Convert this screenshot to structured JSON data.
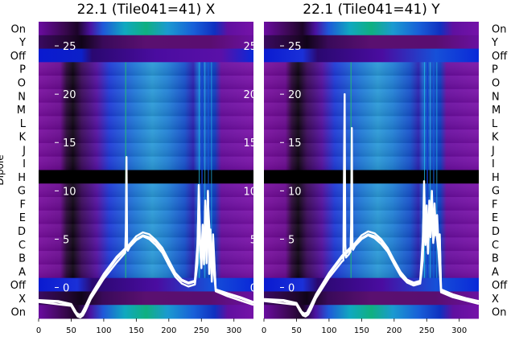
{
  "chart_data": [
    {
      "type": "heatmap",
      "title": "22.1 (Tile041=41) X",
      "ylabel": "Dipole",
      "xlim": [
        0,
        330
      ],
      "x_ticks": [
        0,
        50,
        100,
        150,
        200,
        250,
        300
      ],
      "y_row_labels": [
        "On",
        "Y",
        "Off",
        "P",
        "O",
        "N",
        "M",
        "L",
        "K",
        "J",
        "I",
        "H",
        "G",
        "F",
        "E",
        "D",
        "C",
        "B",
        "A",
        "Off",
        "X",
        "On"
      ],
      "overlay_ticks": [
        25,
        20,
        15,
        10,
        5,
        0
      ],
      "overlay_ylim": [
        -3.2,
        27.5
      ],
      "flagged_row": "H",
      "series": [
        {
          "name": "",
          "x": [
            0,
            30,
            50,
            58,
            62,
            66,
            70,
            80,
            100,
            120,
            140,
            150,
            160,
            170,
            180,
            190,
            200,
            210,
            220,
            230,
            240,
            244,
            246,
            248,
            250,
            252,
            254,
            256,
            258,
            260,
            262,
            264,
            266,
            268,
            272,
            290,
            310,
            330
          ],
          "y": [
            -1.4,
            -1.5,
            -1.8,
            -2.7,
            -2.9,
            -2.8,
            -2.3,
            -0.9,
            1.2,
            3.0,
            4.3,
            5.0,
            5.4,
            5.2,
            4.7,
            3.9,
            2.6,
            1.4,
            0.7,
            0.4,
            0.6,
            3.8,
            10.6,
            5.0,
            3.0,
            6.5,
            2.4,
            8.5,
            3.5,
            9.8,
            2.0,
            6.0,
            0.9,
            5.5,
            -0.3,
            -0.7,
            -1.1,
            -1.6
          ]
        },
        {
          "name": "",
          "x": [
            0,
            30,
            50,
            58,
            62,
            66,
            70,
            80,
            100,
            120,
            140,
            150,
            160,
            170,
            180,
            190,
            200,
            210,
            220,
            230,
            240,
            244,
            246,
            248,
            250,
            252,
            254,
            256,
            258,
            260,
            262,
            264,
            266,
            268,
            272,
            290,
            310,
            330
          ],
          "y": [
            -1.3,
            -1.4,
            -1.7,
            -2.6,
            -2.8,
            -2.7,
            -2.2,
            -0.8,
            1.4,
            3.2,
            4.5,
            5.3,
            5.7,
            5.5,
            4.9,
            4.1,
            2.8,
            1.5,
            0.8,
            0.5,
            0.7,
            4.5,
            9.2,
            3.9,
            2.2,
            5.8,
            3.0,
            9.0,
            2.7,
            10.0,
            1.4,
            5.5,
            0.6,
            4.8,
            -0.2,
            -0.6,
            -1.0,
            -1.5
          ]
        },
        {
          "name": "",
          "x": [
            0,
            50,
            55,
            60,
            64,
            68,
            72,
            80,
            100,
            120,
            133,
            134,
            135,
            136,
            137,
            140,
            150,
            160,
            170,
            180,
            190,
            200,
            210,
            220,
            230,
            240,
            244,
            246,
            248,
            250,
            252,
            254,
            256,
            258,
            260,
            264,
            268,
            272,
            290,
            330
          ],
          "y": [
            -1.5,
            -1.9,
            -2.5,
            -3.0,
            -3.1,
            -2.9,
            -2.4,
            -1.2,
            0.9,
            2.6,
            3.6,
            6.0,
            13.5,
            4.0,
            3.8,
            4.2,
            4.9,
            5.3,
            5.0,
            4.4,
            3.6,
            2.3,
            1.1,
            0.4,
            0.1,
            0.3,
            2.5,
            7.0,
            4.2,
            2.0,
            6.3,
            2.8,
            7.5,
            2.5,
            9.0,
            4.0,
            2.5,
            -0.4,
            -0.9,
            -1.8
          ]
        }
      ]
    },
    {
      "type": "heatmap",
      "title": "22.1 (Tile041=41) Y",
      "ylabel": "",
      "xlim": [
        0,
        330
      ],
      "x_ticks": [
        0,
        50,
        100,
        150,
        200,
        250,
        300
      ],
      "y_row_labels": [
        "On",
        "Y",
        "Off",
        "P",
        "O",
        "N",
        "M",
        "L",
        "K",
        "J",
        "I",
        "H",
        "G",
        "F",
        "E",
        "D",
        "C",
        "B",
        "A",
        "Off",
        "X",
        "On"
      ],
      "overlay_ticks": [
        25,
        20,
        15,
        10,
        5,
        0
      ],
      "overlay_ylim": [
        -3.2,
        27.5
      ],
      "flagged_row": "H",
      "series": [
        {
          "name": "",
          "x": [
            0,
            30,
            50,
            58,
            62,
            66,
            70,
            80,
            100,
            120,
            140,
            150,
            160,
            170,
            180,
            190,
            200,
            210,
            220,
            230,
            240,
            244,
            246,
            248,
            250,
            252,
            254,
            256,
            258,
            260,
            262,
            264,
            266,
            268,
            270,
            272,
            290,
            310,
            330
          ],
          "y": [
            -1.3,
            -1.4,
            -1.7,
            -2.6,
            -2.8,
            -2.7,
            -2.2,
            -0.8,
            1.3,
            3.1,
            4.4,
            5.1,
            5.5,
            5.3,
            4.8,
            3.9,
            2.6,
            1.4,
            0.7,
            0.4,
            0.6,
            4.0,
            11.0,
            5.0,
            8.5,
            4.0,
            9.0,
            6.5,
            10.0,
            5.2,
            8.7,
            6.0,
            7.5,
            4.8,
            5.5,
            -0.4,
            -0.8,
            -1.2,
            -1.5
          ]
        },
        {
          "name": "",
          "x": [
            0,
            30,
            50,
            58,
            62,
            66,
            70,
            80,
            100,
            120,
            140,
            150,
            160,
            170,
            180,
            190,
            200,
            210,
            220,
            230,
            240,
            244,
            246,
            248,
            250,
            252,
            254,
            256,
            258,
            260,
            262,
            264,
            266,
            268,
            270,
            272,
            290,
            310,
            330
          ],
          "y": [
            -1.2,
            -1.3,
            -1.6,
            -2.5,
            -2.7,
            -2.6,
            -2.1,
            -0.7,
            1.5,
            3.3,
            4.6,
            5.4,
            5.8,
            5.6,
            5.0,
            4.1,
            2.8,
            1.6,
            0.8,
            0.5,
            0.7,
            5.0,
            9.5,
            4.5,
            7.8,
            3.6,
            8.2,
            6.0,
            9.4,
            4.6,
            8.0,
            5.4,
            7.0,
            4.2,
            5.0,
            -0.2,
            -0.7,
            -1.1,
            -1.4
          ]
        },
        {
          "name": "",
          "x": [
            0,
            50,
            55,
            60,
            64,
            68,
            72,
            80,
            100,
            120,
            122,
            123,
            124,
            125,
            126,
            130,
            133,
            134,
            135,
            136,
            137,
            140,
            150,
            160,
            170,
            180,
            190,
            200,
            210,
            220,
            230,
            240,
            244,
            246,
            248,
            250,
            252,
            254,
            256,
            258,
            260,
            264,
            268,
            272,
            290,
            330
          ],
          "y": [
            -1.4,
            -1.8,
            -2.4,
            -2.9,
            -3.0,
            -2.8,
            -2.3,
            -1.1,
            1.0,
            2.7,
            2.8,
            12.0,
            20.0,
            4.5,
            3.1,
            3.4,
            3.7,
            6.5,
            16.5,
            4.2,
            3.9,
            4.3,
            5.0,
            5.4,
            5.1,
            4.5,
            3.7,
            2.4,
            1.2,
            0.5,
            0.2,
            0.4,
            2.8,
            7.2,
            4.4,
            6.8,
            3.5,
            7.6,
            5.2,
            8.4,
            4.8,
            6.2,
            3.8,
            -0.5,
            -1.0,
            -1.7
          ]
        }
      ]
    }
  ]
}
